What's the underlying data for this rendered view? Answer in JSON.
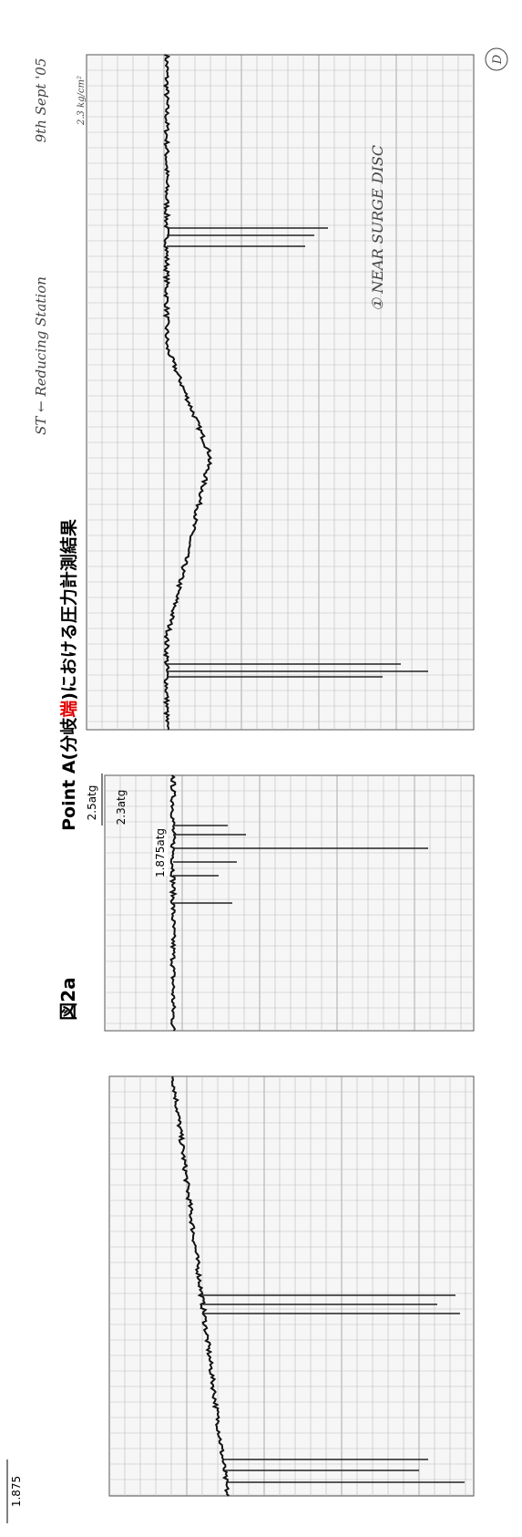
{
  "header": {
    "figure_label": "図2a",
    "title_prefix": "Point A(分岐",
    "title_highlight": "端",
    "title_suffix": ")における圧力計測結果"
  },
  "notes": {
    "location": "ST ← Reducing Station",
    "date": "9th Sept '05",
    "scale_note": "2.3 kg/cm²",
    "marker": "D",
    "annotation": "① NEAR SURGE DISC"
  },
  "labels": {
    "upper": "2.5atg",
    "middle": "2.3atg",
    "baseline_atg": "1.875atg",
    "baseline": "1.875"
  }
}
